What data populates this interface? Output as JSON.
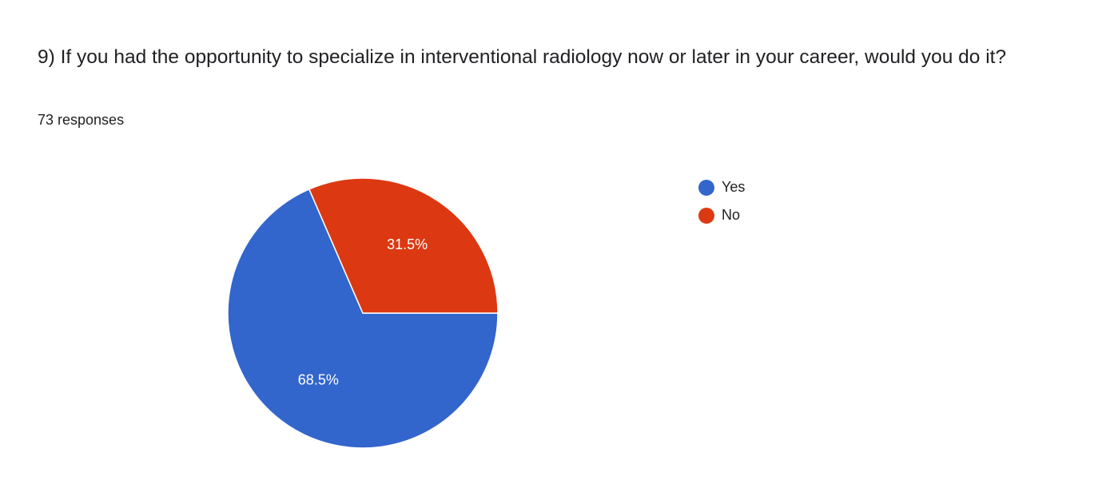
{
  "chart_data": {
    "type": "pie",
    "title": "9) If you had the opportunity to specialize in interventional radiology now or later in your career, would you do it?",
    "subtitle": "73 responses",
    "categories": [
      "Yes",
      "No"
    ],
    "values": [
      68.5,
      31.5
    ],
    "value_labels": [
      "68.5%",
      "31.5%"
    ],
    "colors": [
      "#3366cc",
      "#dc3912"
    ],
    "legend": "right"
  }
}
